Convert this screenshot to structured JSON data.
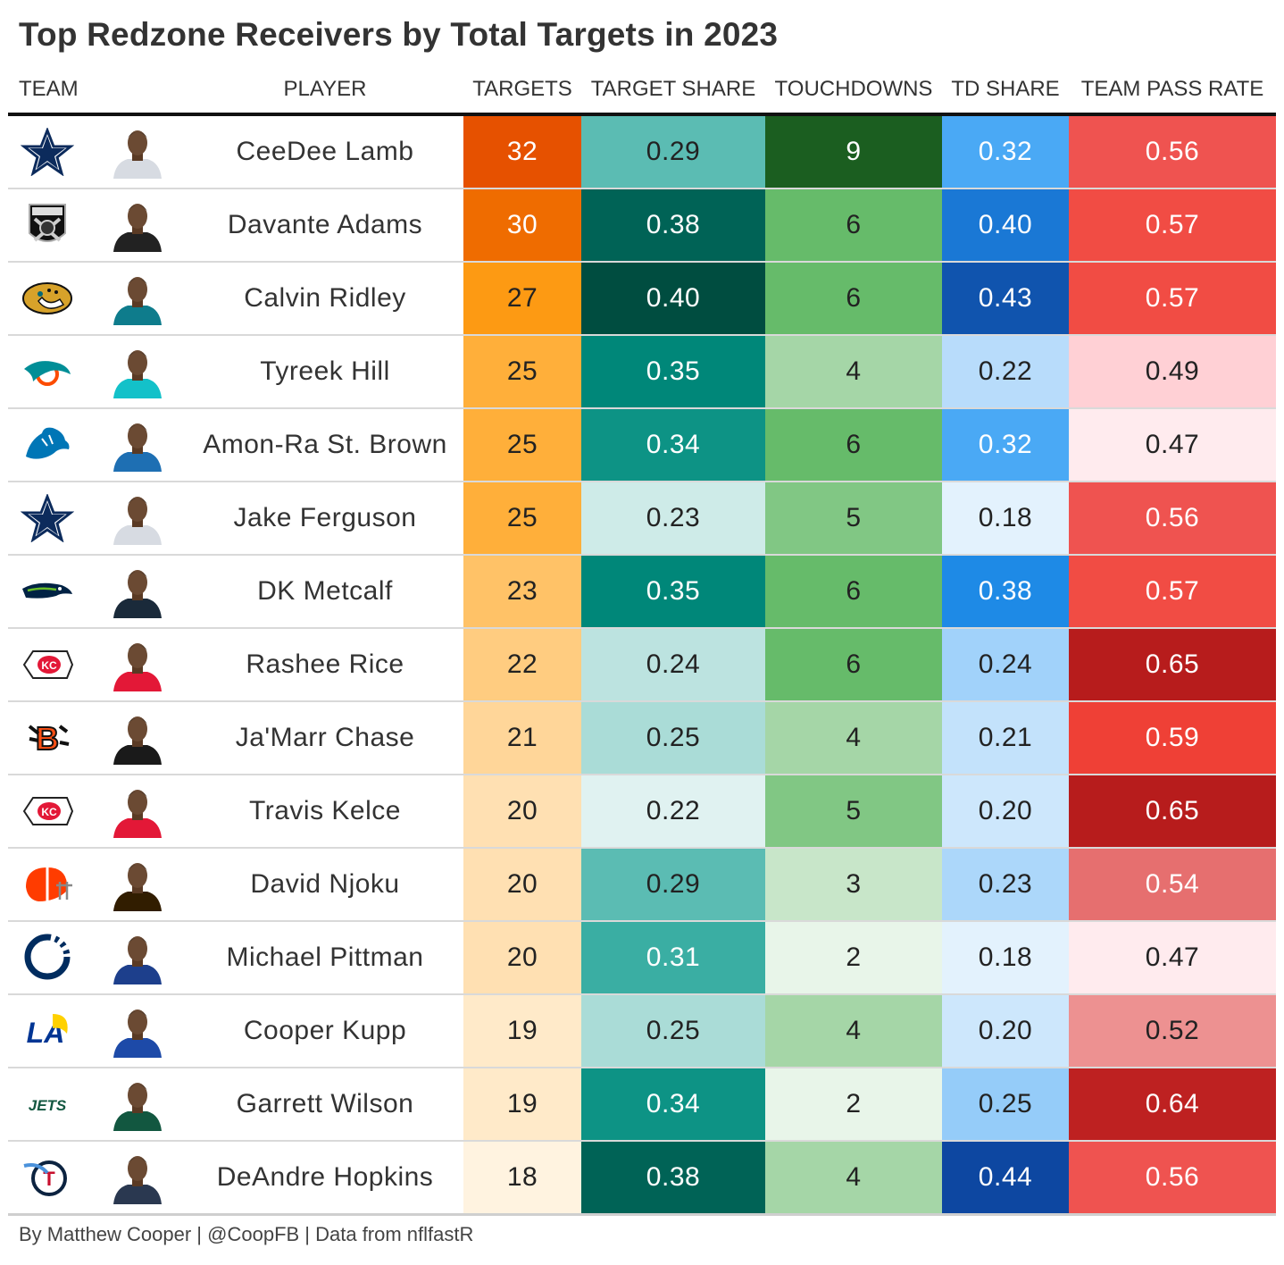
{
  "title": "Top Redzone Receivers by Total Targets in 2023",
  "headers": {
    "team": "TEAM",
    "player": "PLAYER",
    "targets": "TARGETS",
    "target_share": "TARGET SHARE",
    "touchdowns": "TOUCHDOWNS",
    "td_share": "TD SHARE",
    "team_pass_rate": "TEAM PASS RATE"
  },
  "rows": [
    {
      "team_icon": "cowboys-logo",
      "player": "CeeDee Lamb",
      "targets": "32",
      "target_share": "0.29",
      "touchdowns": "9",
      "td_share": "0.32",
      "team_pass_rate": "0.56"
    },
    {
      "team_icon": "raiders-logo",
      "player": "Davante Adams",
      "targets": "30",
      "target_share": "0.38",
      "touchdowns": "6",
      "td_share": "0.40",
      "team_pass_rate": "0.57"
    },
    {
      "team_icon": "jaguars-logo",
      "player": "Calvin Ridley",
      "targets": "27",
      "target_share": "0.40",
      "touchdowns": "6",
      "td_share": "0.43",
      "team_pass_rate": "0.57"
    },
    {
      "team_icon": "dolphins-logo",
      "player": "Tyreek Hill",
      "targets": "25",
      "target_share": "0.35",
      "touchdowns": "4",
      "td_share": "0.22",
      "team_pass_rate": "0.49"
    },
    {
      "team_icon": "lions-logo",
      "player": "Amon-Ra St. Brown",
      "targets": "25",
      "target_share": "0.34",
      "touchdowns": "6",
      "td_share": "0.32",
      "team_pass_rate": "0.47"
    },
    {
      "team_icon": "cowboys-logo",
      "player": "Jake Ferguson",
      "targets": "25",
      "target_share": "0.23",
      "touchdowns": "5",
      "td_share": "0.18",
      "team_pass_rate": "0.56"
    },
    {
      "team_icon": "seahawks-logo",
      "player": "DK Metcalf",
      "targets": "23",
      "target_share": "0.35",
      "touchdowns": "6",
      "td_share": "0.38",
      "team_pass_rate": "0.57"
    },
    {
      "team_icon": "chiefs-logo",
      "player": "Rashee Rice",
      "targets": "22",
      "target_share": "0.24",
      "touchdowns": "6",
      "td_share": "0.24",
      "team_pass_rate": "0.65"
    },
    {
      "team_icon": "bengals-logo",
      "player": "Ja'Marr Chase",
      "targets": "21",
      "target_share": "0.25",
      "touchdowns": "4",
      "td_share": "0.21",
      "team_pass_rate": "0.59"
    },
    {
      "team_icon": "chiefs-logo",
      "player": "Travis Kelce",
      "targets": "20",
      "target_share": "0.22",
      "touchdowns": "5",
      "td_share": "0.20",
      "team_pass_rate": "0.65"
    },
    {
      "team_icon": "browns-logo",
      "player": "David Njoku",
      "targets": "20",
      "target_share": "0.29",
      "touchdowns": "3",
      "td_share": "0.23",
      "team_pass_rate": "0.54"
    },
    {
      "team_icon": "colts-logo",
      "player": "Michael Pittman",
      "targets": "20",
      "target_share": "0.31",
      "touchdowns": "2",
      "td_share": "0.18",
      "team_pass_rate": "0.47"
    },
    {
      "team_icon": "rams-logo",
      "player": "Cooper Kupp",
      "targets": "19",
      "target_share": "0.25",
      "touchdowns": "4",
      "td_share": "0.20",
      "team_pass_rate": "0.52"
    },
    {
      "team_icon": "jets-logo",
      "player": "Garrett Wilson",
      "targets": "19",
      "target_share": "0.34",
      "touchdowns": "2",
      "td_share": "0.25",
      "team_pass_rate": "0.64"
    },
    {
      "team_icon": "titans-logo",
      "player": "DeAndre Hopkins",
      "targets": "18",
      "target_share": "0.38",
      "touchdowns": "4",
      "td_share": "0.44",
      "team_pass_rate": "0.56"
    }
  ],
  "footer": "By Matthew Cooper | @CoopFB | Data from nflfastR"
}
